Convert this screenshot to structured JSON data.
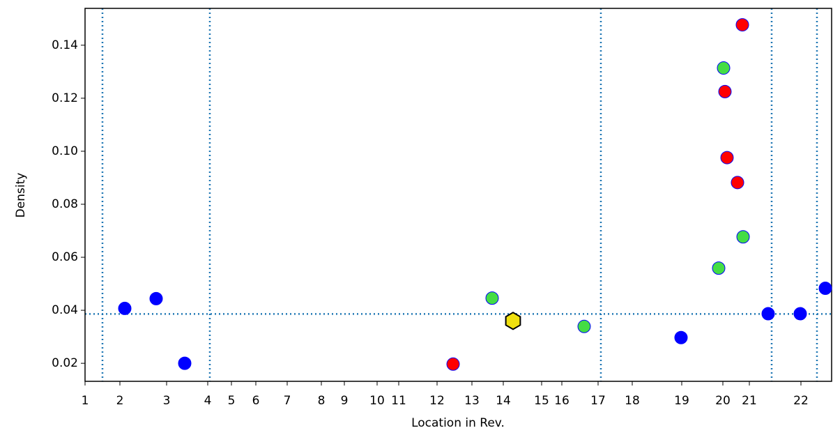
{
  "chart_data": {
    "type": "scatter",
    "x_label": "Location in Rev.",
    "y_label": "Density",
    "xlim": [
      0,
      1071
    ],
    "ylim": [
      0.0132,
      0.1539
    ],
    "xticks": [
      {
        "value": 0,
        "label": "1"
      },
      {
        "value": 50,
        "label": "2"
      },
      {
        "value": 117,
        "label": "3"
      },
      {
        "value": 176,
        "label": "4"
      },
      {
        "value": 210,
        "label": "5"
      },
      {
        "value": 245,
        "label": "6"
      },
      {
        "value": 290,
        "label": "7"
      },
      {
        "value": 339,
        "label": "8"
      },
      {
        "value": 372,
        "label": "9"
      },
      {
        "value": 419,
        "label": "10"
      },
      {
        "value": 450,
        "label": "11"
      },
      {
        "value": 505,
        "label": "12"
      },
      {
        "value": 555,
        "label": "13"
      },
      {
        "value": 600,
        "label": "14"
      },
      {
        "value": 655,
        "label": "15"
      },
      {
        "value": 684,
        "label": "16"
      },
      {
        "value": 736,
        "label": "17"
      },
      {
        "value": 785,
        "label": "18"
      },
      {
        "value": 856,
        "label": "19"
      },
      {
        "value": 915,
        "label": "20"
      },
      {
        "value": 953,
        "label": "21"
      },
      {
        "value": 1027,
        "label": "22"
      }
    ],
    "yticks": [
      {
        "value": 0.02,
        "label": "0.02"
      },
      {
        "value": 0.04,
        "label": "0.04"
      },
      {
        "value": 0.06,
        "label": "0.06"
      },
      {
        "value": 0.08,
        "label": "0.08"
      },
      {
        "value": 0.1,
        "label": "0.10"
      },
      {
        "value": 0.12,
        "label": "0.12"
      },
      {
        "value": 0.14,
        "label": "0.14"
      }
    ],
    "vlines": [
      25,
      179,
      740,
      985,
      1050
    ],
    "hlines": [
      0.0386
    ],
    "ref_line_color": "#1f77b4",
    "series": [
      {
        "color": "#0000ff",
        "marker": "circle",
        "x": [
          57,
          102,
          143,
          855,
          980,
          1026,
          1062
        ],
        "values": [
          0.0407,
          0.0444,
          0.02,
          0.0297,
          0.0387,
          0.0387,
          0.0483
        ]
      },
      {
        "color": "#44dd44",
        "marker": "circle",
        "x": [
          584,
          716,
          909,
          916,
          944
        ],
        "values": [
          0.0446,
          0.0339,
          0.0559,
          0.1314,
          0.0677
        ]
      },
      {
        "color": "#ff0000",
        "marker": "circle",
        "x": [
          528,
          918,
          921,
          936,
          943
        ],
        "values": [
          0.0197,
          0.1225,
          0.0976,
          0.0882,
          0.1477
        ]
      },
      {
        "color": "#f0e010",
        "marker": "hexagon",
        "x": [
          614
        ],
        "values": [
          0.036
        ]
      }
    ]
  }
}
